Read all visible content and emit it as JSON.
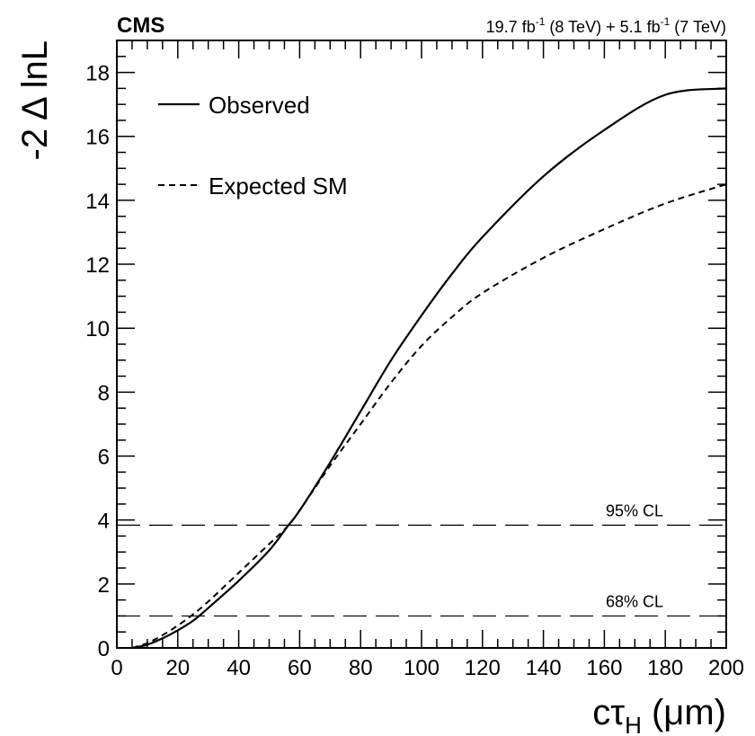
{
  "chart_data": {
    "type": "line",
    "experiment_label": "CMS",
    "lumi_label": {
      "a": "19.7 fb",
      "a_sup": "-1",
      "b": " (8 TeV) + 5.1 fb",
      "b_sup": "-1",
      "c": " (7 TeV)"
    },
    "xlabel": {
      "main": "cτ",
      "sub": "H",
      "unit": " (μm)"
    },
    "ylabel": "-2 Δ lnL",
    "xlim": [
      0,
      200
    ],
    "ylim": [
      0,
      19
    ],
    "xticks": [
      "0",
      "20",
      "40",
      "60",
      "80",
      "100",
      "120",
      "140",
      "160",
      "180",
      "200"
    ],
    "yticks": [
      "0",
      "2",
      "4",
      "6",
      "8",
      "10",
      "12",
      "14",
      "16",
      "18"
    ],
    "series": [
      {
        "name": "Observed",
        "style": "solid",
        "x": [
          5,
          10,
          15,
          20,
          25,
          30,
          40,
          50,
          56,
          60,
          70,
          80,
          90,
          100,
          110,
          120,
          140,
          160,
          180,
          200
        ],
        "y": [
          0.0,
          0.1,
          0.3,
          0.55,
          0.85,
          1.25,
          2.1,
          3.05,
          3.8,
          4.3,
          5.8,
          7.4,
          9.0,
          10.4,
          11.7,
          12.85,
          14.75,
          16.2,
          17.3,
          17.5
        ]
      },
      {
        "name": "Expected SM",
        "style": "dashed",
        "x": [
          5,
          10,
          15,
          20,
          25,
          30,
          40,
          50,
          56,
          60,
          70,
          80,
          90,
          100,
          110,
          120,
          140,
          160,
          180,
          200
        ],
        "y": [
          0.0,
          0.15,
          0.4,
          0.7,
          1.05,
          1.45,
          2.35,
          3.25,
          3.8,
          4.3,
          5.7,
          7.0,
          8.3,
          9.45,
          10.35,
          11.1,
          12.2,
          13.1,
          13.9,
          14.5
        ]
      }
    ],
    "reference_lines": [
      {
        "label": "95% CL",
        "y": 3.84
      },
      {
        "label": "68% CL",
        "y": 1.0
      }
    ],
    "legend_position": "top-left",
    "grid": false
  }
}
